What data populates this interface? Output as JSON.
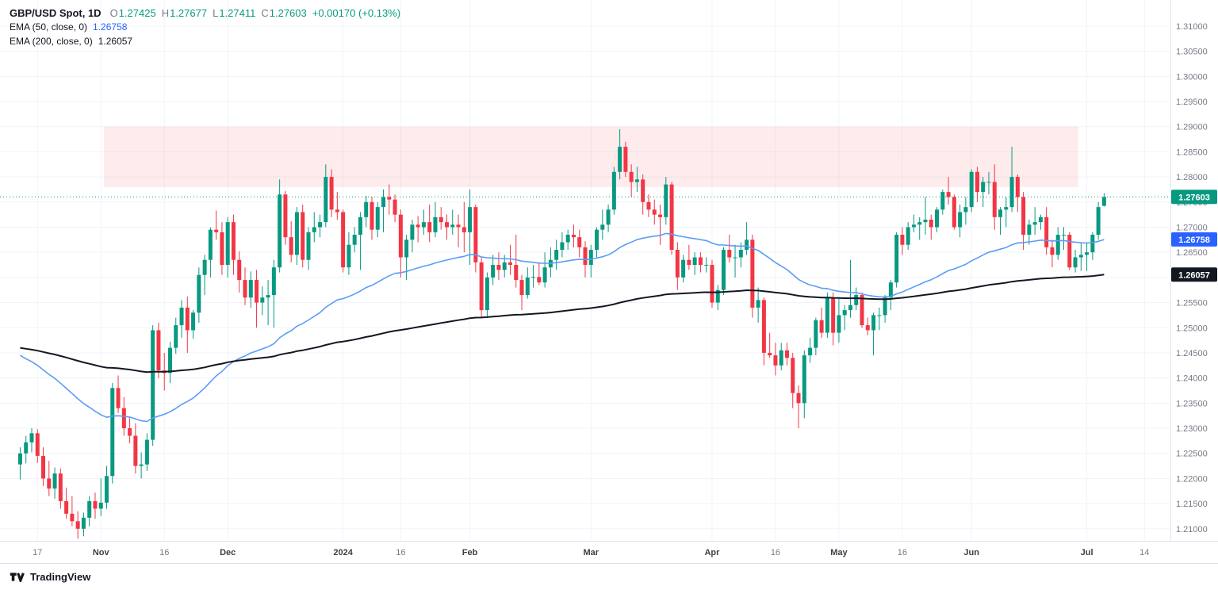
{
  "header": {
    "symbol": "GBP/USD Spot, 1D",
    "ohlc": {
      "o_label": "O",
      "o": "1.27425",
      "h_label": "H",
      "h": "1.27677",
      "l_label": "L",
      "l": "1.27411",
      "c_label": "C",
      "c": "1.27603",
      "change": "+0.00170 (+0.13%)"
    },
    "indicators": [
      {
        "label": "EMA (50, close, 0)",
        "value": "1.26758",
        "color": "#2962FF"
      },
      {
        "label": "EMA (200, close, 0)",
        "value": "1.26057",
        "color": "#131722"
      }
    ]
  },
  "footer": {
    "brand": "TradingView"
  },
  "chart_data": {
    "type": "candlestick",
    "title": "GBP/USD Spot, 1D",
    "grid": true,
    "colors": {
      "up": "#089981",
      "down": "#F23645",
      "grid": "#f0f3fa",
      "axis_text": "#787b86",
      "axis_line": "#e0e3eb"
    },
    "y_domain": {
      "top": 1.3152,
      "bottom": 1.2076
    },
    "y_ticks": [
      "1.31000",
      "1.30500",
      "1.30000",
      "1.29500",
      "1.29000",
      "1.28500",
      "1.28000",
      "1.27500",
      "1.27000",
      "1.26500",
      "1.26000",
      "1.25500",
      "1.25000",
      "1.24500",
      "1.24000",
      "1.23500",
      "1.23000",
      "1.22500",
      "1.22000",
      "1.21500",
      "1.21000"
    ],
    "total_slots": 203,
    "x_offset_slots": 3,
    "x_labels": [
      {
        "label": "17",
        "index": 3,
        "kind": "day"
      },
      {
        "label": "Nov",
        "index": 14,
        "kind": "month"
      },
      {
        "label": "16",
        "index": 25,
        "kind": "day"
      },
      {
        "label": "Dec",
        "index": 36,
        "kind": "month"
      },
      {
        "label": "2024",
        "index": 56,
        "kind": "year"
      },
      {
        "label": "16",
        "index": 66,
        "kind": "day"
      },
      {
        "label": "Feb",
        "index": 78,
        "kind": "month"
      },
      {
        "label": "Mar",
        "index": 99,
        "kind": "month"
      },
      {
        "label": "Apr",
        "index": 120,
        "kind": "month"
      },
      {
        "label": "16",
        "index": 131,
        "kind": "day"
      },
      {
        "label": "May",
        "index": 142,
        "kind": "month"
      },
      {
        "label": "16",
        "index": 153,
        "kind": "day"
      },
      {
        "label": "Jun",
        "index": 165,
        "kind": "month"
      },
      {
        "label": "Jul",
        "index": 185,
        "kind": "month"
      },
      {
        "label": "14",
        "index": 195,
        "kind": "day"
      }
    ],
    "zone": {
      "start_index": 15,
      "end_index": 183,
      "top": 1.29,
      "bottom": 1.278,
      "color": "rgba(242,54,69,0.10)"
    },
    "last_price_line": {
      "price": 1.27603,
      "color": "#089981"
    },
    "price_badges": [
      {
        "text": "1.27603",
        "price": 1.27603,
        "color": "#089981"
      },
      {
        "text": "1.26758",
        "price": 1.26758,
        "color": "#2962FF"
      },
      {
        "text": "1.26057",
        "price": 1.26057,
        "color": "#131722"
      }
    ],
    "emas": [
      {
        "period": 50,
        "seed": 1.2445,
        "color": "#5b9cf6",
        "width": 1.6
      },
      {
        "period": 200,
        "seed": 1.246,
        "color": "#131722",
        "width": 2
      }
    ],
    "candles": [
      [
        1.2228,
        1.2262,
        1.2198,
        1.225
      ],
      [
        1.225,
        1.2285,
        1.223,
        1.2272
      ],
      [
        1.2272,
        1.23,
        1.2252,
        1.229
      ],
      [
        1.229,
        1.2298,
        1.2231,
        1.2245
      ],
      [
        1.2245,
        1.2262,
        1.2185,
        1.22
      ],
      [
        1.22,
        1.2235,
        1.2165,
        1.218
      ],
      [
        1.218,
        1.2222,
        1.216,
        1.221
      ],
      [
        1.221,
        1.222,
        1.214,
        1.2155
      ],
      [
        1.2155,
        1.2182,
        1.212,
        1.213
      ],
      [
        1.213,
        1.2165,
        1.2105,
        1.2115
      ],
      [
        1.2115,
        1.2135,
        1.208,
        1.21
      ],
      [
        1.21,
        1.2132,
        1.2085,
        1.2122
      ],
      [
        1.2122,
        1.2165,
        1.2105,
        1.2155
      ],
      [
        1.2155,
        1.2172,
        1.212,
        1.214
      ],
      [
        1.214,
        1.22,
        1.2125,
        1.2152
      ],
      [
        1.2152,
        1.2225,
        1.214,
        1.2205
      ],
      [
        1.2205,
        1.239,
        1.219,
        1.238
      ],
      [
        1.238,
        1.2405,
        1.233,
        1.234
      ],
      [
        1.234,
        1.2362,
        1.2285,
        1.23
      ],
      [
        1.23,
        1.2322,
        1.227,
        1.2285
      ],
      [
        1.2285,
        1.231,
        1.221,
        1.2225
      ],
      [
        1.2225,
        1.2252,
        1.22,
        1.2228
      ],
      [
        1.2228,
        1.229,
        1.2215,
        1.2277
      ],
      [
        1.2277,
        1.2505,
        1.2265,
        1.2495
      ],
      [
        1.2495,
        1.251,
        1.24,
        1.2415
      ],
      [
        1.2415,
        1.245,
        1.2375,
        1.241
      ],
      [
        1.241,
        1.2472,
        1.239,
        1.246
      ],
      [
        1.246,
        1.252,
        1.2448,
        1.2505
      ],
      [
        1.2505,
        1.2555,
        1.248,
        1.254
      ],
      [
        1.254,
        1.2562,
        1.245,
        1.2495
      ],
      [
        1.2495,
        1.2535,
        1.2478,
        1.253
      ],
      [
        1.253,
        1.262,
        1.251,
        1.2605
      ],
      [
        1.2605,
        1.2645,
        1.2565,
        1.2635
      ],
      [
        1.2635,
        1.27,
        1.26,
        1.2695
      ],
      [
        1.2695,
        1.2733,
        1.2675,
        1.269
      ],
      [
        1.269,
        1.271,
        1.2605,
        1.2625
      ],
      [
        1.2625,
        1.272,
        1.26,
        1.271
      ],
      [
        1.271,
        1.2725,
        1.2605,
        1.2635
      ],
      [
        1.2635,
        1.2652,
        1.257,
        1.2595
      ],
      [
        1.2595,
        1.262,
        1.2545,
        1.256
      ],
      [
        1.256,
        1.2612,
        1.254,
        1.2595
      ],
      [
        1.2595,
        1.2615,
        1.25,
        1.255
      ],
      [
        1.255,
        1.2582,
        1.2525,
        1.256
      ],
      [
        1.256,
        1.2595,
        1.2505,
        1.2565
      ],
      [
        1.2565,
        1.2635,
        1.25,
        1.262
      ],
      [
        1.262,
        1.2795,
        1.261,
        1.2765
      ],
      [
        1.2765,
        1.2772,
        1.2665,
        1.268
      ],
      [
        1.268,
        1.2712,
        1.263,
        1.2645
      ],
      [
        1.2645,
        1.274,
        1.2625,
        1.273
      ],
      [
        1.273,
        1.2745,
        1.262,
        1.2635
      ],
      [
        1.2635,
        1.27,
        1.2615,
        1.269
      ],
      [
        1.269,
        1.273,
        1.267,
        1.27
      ],
      [
        1.27,
        1.2725,
        1.268,
        1.271
      ],
      [
        1.271,
        1.2825,
        1.27,
        1.28
      ],
      [
        1.28,
        1.2815,
        1.272,
        1.2735
      ],
      [
        1.2735,
        1.277,
        1.2715,
        1.273
      ],
      [
        1.273,
        1.2735,
        1.261,
        1.262
      ],
      [
        1.262,
        1.269,
        1.2605,
        1.2665
      ],
      [
        1.2665,
        1.27,
        1.265,
        1.2685
      ],
      [
        1.2685,
        1.273,
        1.2615,
        1.272
      ],
      [
        1.272,
        1.2762,
        1.27,
        1.275
      ],
      [
        1.275,
        1.276,
        1.2675,
        1.2695
      ],
      [
        1.2695,
        1.275,
        1.268,
        1.274
      ],
      [
        1.274,
        1.2775,
        1.269,
        1.276
      ],
      [
        1.276,
        1.2785,
        1.2725,
        1.2755
      ],
      [
        1.2755,
        1.2765,
        1.271,
        1.2725
      ],
      [
        1.2725,
        1.2735,
        1.26,
        1.264
      ],
      [
        1.264,
        1.2685,
        1.2595,
        1.2675
      ],
      [
        1.2675,
        1.2715,
        1.265,
        1.2705
      ],
      [
        1.2705,
        1.2722,
        1.267,
        1.27
      ],
      [
        1.27,
        1.2735,
        1.2685,
        1.271
      ],
      [
        1.271,
        1.2745,
        1.267,
        1.269
      ],
      [
        1.269,
        1.275,
        1.268,
        1.272
      ],
      [
        1.272,
        1.274,
        1.2695,
        1.271
      ],
      [
        1.271,
        1.2725,
        1.2675,
        1.27
      ],
      [
        1.27,
        1.2735,
        1.2685,
        1.2705
      ],
      [
        1.2705,
        1.2725,
        1.266,
        1.27
      ],
      [
        1.27,
        1.275,
        1.265,
        1.269
      ],
      [
        1.269,
        1.2775,
        1.2625,
        1.274
      ],
      [
        1.274,
        1.2745,
        1.261,
        1.263
      ],
      [
        1.263,
        1.264,
        1.252,
        1.2535
      ],
      [
        1.2535,
        1.261,
        1.252,
        1.26
      ],
      [
        1.26,
        1.2645,
        1.2585,
        1.2625
      ],
      [
        1.2625,
        1.265,
        1.2595,
        1.2615
      ],
      [
        1.2615,
        1.2645,
        1.26,
        1.263
      ],
      [
        1.263,
        1.2665,
        1.2605,
        1.2625
      ],
      [
        1.2625,
        1.2685,
        1.258,
        1.2595
      ],
      [
        1.2595,
        1.2605,
        1.2535,
        1.2565
      ],
      [
        1.2565,
        1.262,
        1.2558,
        1.26
      ],
      [
        1.26,
        1.2625,
        1.258,
        1.2601
      ],
      [
        1.2601,
        1.263,
        1.2585,
        1.259
      ],
      [
        1.259,
        1.265,
        1.258,
        1.262
      ],
      [
        1.262,
        1.266,
        1.26,
        1.2635
      ],
      [
        1.2635,
        1.2675,
        1.2615,
        1.2655
      ],
      [
        1.2655,
        1.269,
        1.264,
        1.267
      ],
      [
        1.267,
        1.2695,
        1.2655,
        1.2685
      ],
      [
        1.2685,
        1.2705,
        1.266,
        1.268
      ],
      [
        1.268,
        1.2695,
        1.264,
        1.266
      ],
      [
        1.266,
        1.2672,
        1.26,
        1.2625
      ],
      [
        1.2625,
        1.2665,
        1.26,
        1.2655
      ],
      [
        1.2655,
        1.27,
        1.264,
        1.2695
      ],
      [
        1.2695,
        1.2735,
        1.2675,
        1.2705
      ],
      [
        1.2705,
        1.2745,
        1.269,
        1.2735
      ],
      [
        1.2735,
        1.282,
        1.2725,
        1.281
      ],
      [
        1.281,
        1.2895,
        1.2795,
        1.286
      ],
      [
        1.286,
        1.287,
        1.28,
        1.281
      ],
      [
        1.281,
        1.2825,
        1.276,
        1.279
      ],
      [
        1.279,
        1.282,
        1.277,
        1.2795
      ],
      [
        1.2795,
        1.2805,
        1.2725,
        1.275
      ],
      [
        1.275,
        1.2765,
        1.272,
        1.2735
      ],
      [
        1.2735,
        1.2755,
        1.2705,
        1.2725
      ],
      [
        1.2725,
        1.2745,
        1.2665,
        1.272
      ],
      [
        1.272,
        1.28,
        1.2705,
        1.2785
      ],
      [
        1.2785,
        1.279,
        1.2645,
        1.2655
      ],
      [
        1.2655,
        1.267,
        1.2575,
        1.26
      ],
      [
        1.26,
        1.2645,
        1.259,
        1.2635
      ],
      [
        1.2635,
        1.2665,
        1.2615,
        1.2625
      ],
      [
        1.2625,
        1.265,
        1.2605,
        1.264
      ],
      [
        1.264,
        1.265,
        1.261,
        1.2625
      ],
      [
        1.2625,
        1.264,
        1.261,
        1.2625
      ],
      [
        1.2625,
        1.2635,
        1.254,
        1.255
      ],
      [
        1.255,
        1.2585,
        1.2535,
        1.2575
      ],
      [
        1.2575,
        1.266,
        1.2565,
        1.2655
      ],
      [
        1.2655,
        1.2685,
        1.263,
        1.264
      ],
      [
        1.264,
        1.2665,
        1.26,
        1.264
      ],
      [
        1.264,
        1.267,
        1.262,
        1.2655
      ],
      [
        1.2655,
        1.271,
        1.2645,
        1.2675
      ],
      [
        1.2675,
        1.2685,
        1.252,
        1.254
      ],
      [
        1.254,
        1.258,
        1.251,
        1.2555
      ],
      [
        1.2555,
        1.256,
        1.2425,
        1.245
      ],
      [
        1.245,
        1.249,
        1.244,
        1.2445
      ],
      [
        1.2445,
        1.247,
        1.2405,
        1.2425
      ],
      [
        1.2425,
        1.247,
        1.2415,
        1.2455
      ],
      [
        1.2455,
        1.247,
        1.2425,
        1.244
      ],
      [
        1.244,
        1.245,
        1.234,
        1.237
      ],
      [
        1.237,
        1.2385,
        1.23,
        1.235
      ],
      [
        1.235,
        1.2455,
        1.232,
        1.2445
      ],
      [
        1.2445,
        1.248,
        1.243,
        1.246
      ],
      [
        1.246,
        1.252,
        1.2445,
        1.2515
      ],
      [
        1.2515,
        1.254,
        1.248,
        1.249
      ],
      [
        1.249,
        1.257,
        1.248,
        1.256
      ],
      [
        1.256,
        1.257,
        1.2465,
        1.249
      ],
      [
        1.249,
        1.256,
        1.247,
        1.2525
      ],
      [
        1.2525,
        1.2545,
        1.2495,
        1.2535
      ],
      [
        1.2535,
        1.2635,
        1.252,
        1.2545
      ],
      [
        1.2545,
        1.258,
        1.2535,
        1.2565
      ],
      [
        1.2565,
        1.257,
        1.25,
        1.2505
      ],
      [
        1.2505,
        1.252,
        1.2485,
        1.2495
      ],
      [
        1.2495,
        1.253,
        1.2445,
        1.2525
      ],
      [
        1.2525,
        1.254,
        1.2495,
        1.2525
      ],
      [
        1.2525,
        1.2565,
        1.251,
        1.256
      ],
      [
        1.256,
        1.2595,
        1.2535,
        1.259
      ],
      [
        1.259,
        1.269,
        1.258,
        1.2685
      ],
      [
        1.2685,
        1.27,
        1.2645,
        1.2665
      ],
      [
        1.2665,
        1.271,
        1.2655,
        1.27
      ],
      [
        1.27,
        1.2725,
        1.269,
        1.2705
      ],
      [
        1.2705,
        1.272,
        1.2675,
        1.271
      ],
      [
        1.271,
        1.276,
        1.2685,
        1.2715
      ],
      [
        1.2715,
        1.2725,
        1.2675,
        1.27
      ],
      [
        1.27,
        1.274,
        1.269,
        1.2735
      ],
      [
        1.2735,
        1.2775,
        1.2725,
        1.277
      ],
      [
        1.277,
        1.28,
        1.2745,
        1.276
      ],
      [
        1.276,
        1.2765,
        1.2695,
        1.27
      ],
      [
        1.27,
        1.2745,
        1.268,
        1.273
      ],
      [
        1.273,
        1.276,
        1.2705,
        1.274
      ],
      [
        1.274,
        1.2815,
        1.273,
        1.281
      ],
      [
        1.281,
        1.282,
        1.275,
        1.277
      ],
      [
        1.277,
        1.28,
        1.274,
        1.279
      ],
      [
        1.279,
        1.281,
        1.2765,
        1.279
      ],
      [
        1.279,
        1.2825,
        1.2695,
        1.272
      ],
      [
        1.272,
        1.274,
        1.2685,
        1.2735
      ],
      [
        1.2735,
        1.276,
        1.27,
        1.274
      ],
      [
        1.274,
        1.286,
        1.273,
        1.28
      ],
      [
        1.28,
        1.2805,
        1.273,
        1.276
      ],
      [
        1.276,
        1.277,
        1.2655,
        1.2685
      ],
      [
        1.2685,
        1.2715,
        1.2665,
        1.2705
      ],
      [
        1.2705,
        1.274,
        1.2685,
        1.271
      ],
      [
        1.271,
        1.2725,
        1.2695,
        1.272
      ],
      [
        1.272,
        1.274,
        1.2645,
        1.266
      ],
      [
        1.266,
        1.2675,
        1.262,
        1.2645
      ],
      [
        1.2645,
        1.27,
        1.2635,
        1.2685
      ],
      [
        1.2685,
        1.27,
        1.2655,
        1.2685
      ],
      [
        1.2685,
        1.269,
        1.2615,
        1.262
      ],
      [
        1.262,
        1.2655,
        1.261,
        1.264
      ],
      [
        1.264,
        1.267,
        1.2613,
        1.2645
      ],
      [
        1.2645,
        1.267,
        1.2613,
        1.265
      ],
      [
        1.265,
        1.269,
        1.2635,
        1.2685
      ],
      [
        1.2685,
        1.275,
        1.2675,
        1.274
      ],
      [
        1.27425,
        1.27677,
        1.27411,
        1.27603
      ]
    ]
  }
}
